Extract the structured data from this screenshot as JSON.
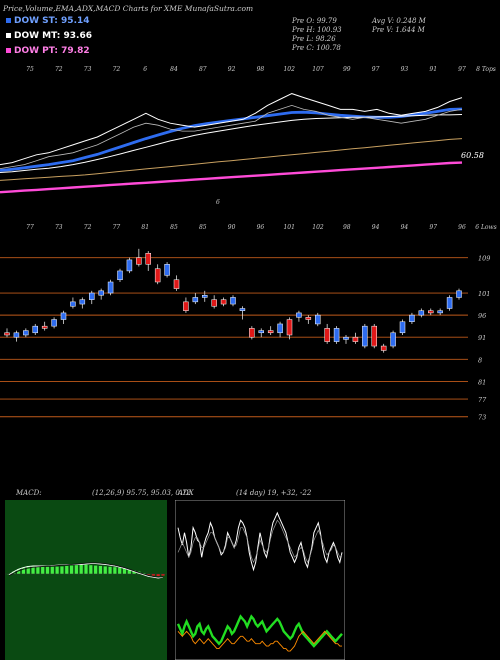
{
  "header": {
    "title": "Price,Volume,EMA,ADX,MACD Charts for XME MunafaSutra.com",
    "quote_lines": [
      [
        "Pre O: 99.79",
        "Avg V: 0.248 M"
      ],
      [
        "Pre H: 100.93",
        "Pre V: 1.644 M"
      ],
      [
        "Pre L: 98.26",
        ""
      ],
      [
        "Pre C: 100.78",
        ""
      ]
    ]
  },
  "legend": [
    {
      "text": "DOW ST: 95.14",
      "color": "#2e6cf0"
    },
    {
      "text": "DOW MT: 93.66",
      "color": "#ffffff"
    },
    {
      "text": "DOW PT: 79.82",
      "color": "#ff4bd8"
    }
  ],
  "colors": {
    "up": "#2e6cf0",
    "down": "#e01818",
    "grid": "#c05a1a",
    "macd_pos": "#44ee44",
    "adx_green": "#22dd22",
    "adx_orange": "#ff8c00"
  },
  "chart_data": [
    {
      "type": "line",
      "title": "EMA",
      "top_labels": [
        "75",
        "72",
        "73",
        "72",
        "6",
        "84",
        "87",
        "92",
        "98",
        "102",
        "107",
        "99",
        "97",
        "93",
        "91",
        "97",
        "8 Tops"
      ],
      "bottom_labels": [
        "77",
        "73",
        "72",
        "77",
        "81",
        "85",
        "85",
        "90",
        "96",
        "101",
        "102",
        "98",
        "94",
        "94",
        "97",
        "96",
        "6 Lows"
      ],
      "annotations": [
        "6",
        "6",
        "60.58"
      ],
      "series": [
        {
          "values": [
            79.5,
            79.8,
            80.2,
            80.6,
            81.0,
            81.5,
            82.0,
            82.8,
            83.6,
            84.6,
            85.6,
            86.6,
            87.6,
            88.5,
            89.4,
            90.2,
            90.9,
            91.4,
            91.8,
            92.2,
            92.6,
            93.0,
            93.4,
            93.8,
            94.2,
            94.3,
            94.1,
            93.8,
            93.5,
            93.3,
            93.1,
            93.0,
            93.0,
            93.2,
            93.6,
            94.0,
            94.5,
            95.0,
            95.1
          ]
        },
        {
          "values": [
            79.0,
            79.2,
            79.5,
            79.8,
            80.1,
            80.5,
            81.0,
            81.6,
            82.3,
            83.0,
            83.8,
            84.6,
            85.4,
            86.2,
            87.0,
            87.7,
            88.4,
            89.0,
            89.5,
            90.0,
            90.5,
            91.0,
            91.4,
            91.8,
            92.2,
            92.5,
            92.7,
            92.8,
            92.9,
            93.0,
            93.0,
            93.1,
            93.2,
            93.3,
            93.4,
            93.5,
            93.6,
            93.6,
            93.7
          ]
        },
        {
          "values": [
            77.0,
            77.2,
            77.4,
            77.6,
            77.8,
            78.0,
            78.2,
            78.4,
            78.7,
            79.0,
            79.3,
            79.6,
            79.9,
            80.2,
            80.5,
            80.8,
            81.1,
            81.4,
            81.7,
            82.0,
            82.3,
            82.6,
            82.9,
            83.2,
            83.5,
            83.8,
            84.1,
            84.4,
            84.7,
            85.0,
            85.3,
            85.6,
            85.9,
            86.2,
            86.5,
            86.8,
            87.1,
            87.4,
            87.6
          ]
        },
        {
          "values": [
            74.0,
            74.2,
            74.4,
            74.6,
            74.8,
            75.0,
            75.2,
            75.4,
            75.6,
            75.8,
            76.0,
            76.2,
            76.4,
            76.6,
            76.8,
            77.0,
            77.2,
            77.4,
            77.6,
            77.8,
            78.0,
            78.2,
            78.4,
            78.6,
            78.8,
            79.0,
            79.2,
            79.4,
            79.6,
            79.8,
            80.0,
            80.2,
            80.4,
            80.6,
            80.8,
            81.0,
            81.2,
            81.4,
            81.5
          ]
        },
        {
          "values": [
            81.0,
            81.5,
            82.5,
            83.5,
            84.0,
            85.0,
            86.0,
            87.0,
            88.0,
            89.5,
            91.0,
            92.5,
            94.0,
            92.5,
            91.5,
            91.0,
            90.5,
            91.0,
            91.5,
            92.0,
            92.5,
            94.0,
            96.0,
            97.5,
            99.0,
            98.0,
            97.0,
            96.0,
            95.0,
            95.0,
            94.5,
            95.0,
            94.0,
            93.5,
            94.0,
            94.5,
            95.5,
            97.0,
            98.0
          ]
        },
        {
          "values": [
            80.0,
            80.5,
            81.0,
            82.0,
            83.0,
            83.5,
            84.0,
            85.0,
            86.0,
            87.5,
            89.0,
            90.5,
            91.5,
            91.0,
            90.0,
            89.5,
            89.5,
            90.0,
            90.5,
            91.0,
            91.5,
            92.0,
            94.0,
            95.0,
            96.0,
            95.0,
            94.5,
            93.5,
            93.0,
            92.5,
            93.0,
            92.5,
            92.0,
            91.5,
            92.0,
            92.5,
            93.5,
            94.5,
            95.0
          ]
        }
      ],
      "ylim": [
        70,
        106
      ]
    },
    {
      "type": "candlestick",
      "title": "Price",
      "right_axis_labels": [
        "109",
        "101",
        "96",
        "91",
        "8",
        "81",
        "77",
        "73"
      ],
      "grid_levels": [
        109,
        101,
        96,
        91,
        86,
        81,
        77,
        73
      ],
      "ylim": [
        70,
        113
      ],
      "candles": [
        {
          "o": 92.0,
          "h": 93.0,
          "l": 91.0,
          "c": 91.5
        },
        {
          "o": 91.0,
          "h": 92.5,
          "l": 90.0,
          "c": 92.0
        },
        {
          "o": 91.5,
          "h": 93.0,
          "l": 91.0,
          "c": 92.5
        },
        {
          "o": 92.0,
          "h": 94.0,
          "l": 91.5,
          "c": 93.5
        },
        {
          "o": 93.5,
          "h": 94.5,
          "l": 92.5,
          "c": 93.0
        },
        {
          "o": 93.5,
          "h": 95.5,
          "l": 93.0,
          "c": 95.0
        },
        {
          "o": 95.0,
          "h": 97.0,
          "l": 94.0,
          "c": 96.5
        },
        {
          "o": 98.0,
          "h": 100.0,
          "l": 97.5,
          "c": 99.0
        },
        {
          "o": 98.5,
          "h": 100.0,
          "l": 97.5,
          "c": 99.5
        },
        {
          "o": 99.5,
          "h": 101.5,
          "l": 98.5,
          "c": 101.0
        },
        {
          "o": 100.5,
          "h": 102.0,
          "l": 99.5,
          "c": 101.5
        },
        {
          "o": 101.0,
          "h": 104.0,
          "l": 100.5,
          "c": 103.5
        },
        {
          "o": 104.0,
          "h": 106.5,
          "l": 103.5,
          "c": 106.0
        },
        {
          "o": 106.0,
          "h": 109.0,
          "l": 105.5,
          "c": 108.5
        },
        {
          "o": 109.0,
          "h": 111.0,
          "l": 107.0,
          "c": 107.5
        },
        {
          "o": 110.0,
          "h": 110.5,
          "l": 106.0,
          "c": 107.5
        },
        {
          "o": 106.5,
          "h": 107.5,
          "l": 103.0,
          "c": 103.5
        },
        {
          "o": 105.0,
          "h": 108.0,
          "l": 104.5,
          "c": 107.5
        },
        {
          "o": 104.0,
          "h": 105.0,
          "l": 101.5,
          "c": 102.0
        },
        {
          "o": 99.0,
          "h": 100.0,
          "l": 96.5,
          "c": 97.0
        },
        {
          "o": 99.0,
          "h": 101.0,
          "l": 98.5,
          "c": 100.0
        },
        {
          "o": 100.0,
          "h": 101.5,
          "l": 99.0,
          "c": 100.5
        },
        {
          "o": 99.5,
          "h": 100.5,
          "l": 97.5,
          "c": 98.0
        },
        {
          "o": 99.5,
          "h": 100.0,
          "l": 98.0,
          "c": 98.5
        },
        {
          "o": 98.5,
          "h": 100.5,
          "l": 98.0,
          "c": 100.0
        },
        {
          "o": 97.0,
          "h": 98.0,
          "l": 95.0,
          "c": 97.5
        },
        {
          "o": 93.0,
          "h": 93.5,
          "l": 90.5,
          "c": 91.0
        },
        {
          "o": 92.0,
          "h": 93.0,
          "l": 91.0,
          "c": 92.5
        },
        {
          "o": 92.5,
          "h": 93.5,
          "l": 91.5,
          "c": 92.0
        },
        {
          "o": 92.0,
          "h": 94.5,
          "l": 91.0,
          "c": 94.0
        },
        {
          "o": 95.0,
          "h": 95.5,
          "l": 90.5,
          "c": 91.5
        },
        {
          "o": 95.5,
          "h": 97.0,
          "l": 94.5,
          "c": 96.5
        },
        {
          "o": 95.5,
          "h": 96.0,
          "l": 94.0,
          "c": 95.0
        },
        {
          "o": 94.0,
          "h": 96.5,
          "l": 93.5,
          "c": 96.0
        },
        {
          "o": 93.0,
          "h": 94.0,
          "l": 89.5,
          "c": 90.0
        },
        {
          "o": 90.0,
          "h": 93.5,
          "l": 89.5,
          "c": 93.0
        },
        {
          "o": 90.5,
          "h": 91.5,
          "l": 89.5,
          "c": 91.0
        },
        {
          "o": 91.0,
          "h": 92.0,
          "l": 89.5,
          "c": 90.0
        },
        {
          "o": 89.0,
          "h": 94.0,
          "l": 88.5,
          "c": 93.5
        },
        {
          "o": 93.5,
          "h": 94.0,
          "l": 88.5,
          "c": 89.0
        },
        {
          "o": 89.0,
          "h": 89.5,
          "l": 87.5,
          "c": 88.0
        },
        {
          "o": 89.0,
          "h": 92.5,
          "l": 88.5,
          "c": 92.0
        },
        {
          "o": 92.0,
          "h": 95.0,
          "l": 91.5,
          "c": 94.5
        },
        {
          "o": 94.5,
          "h": 96.5,
          "l": 94.0,
          "c": 96.0
        },
        {
          "o": 96.0,
          "h": 97.5,
          "l": 95.5,
          "c": 97.0
        },
        {
          "o": 97.0,
          "h": 97.5,
          "l": 96.0,
          "c": 96.5
        },
        {
          "o": 96.5,
          "h": 97.5,
          "l": 96.0,
          "c": 97.0
        },
        {
          "o": 97.5,
          "h": 100.5,
          "l": 97.0,
          "c": 100.0
        },
        {
          "o": 100.0,
          "h": 102.0,
          "l": 99.5,
          "c": 101.5
        }
      ]
    },
    {
      "type": "bar",
      "title": "MACD",
      "label": "MACD:",
      "params": "(12,26,9) 95.75, 95.03, 0.72",
      "ylim": [
        -2.5,
        2.5
      ],
      "series": [
        {
          "name": "hist",
          "values": [
            0.0,
            0.3,
            0.6,
            0.8,
            1.0,
            1.0,
            0.95,
            0.92,
            0.9,
            0.9,
            0.92,
            0.95,
            1.0,
            1.05,
            1.1,
            1.15,
            1.15,
            1.1,
            1.05,
            1.0,
            0.95,
            0.9,
            0.85,
            0.8,
            0.7,
            0.6,
            0.45,
            0.3,
            0.1,
            -0.1,
            -0.2,
            -0.25,
            -0.2
          ]
        },
        {
          "name": "macd",
          "values": [
            -0.1,
            0.3,
            0.6,
            0.8,
            0.95,
            1.0,
            1.0,
            1.0,
            1.0,
            1.05,
            1.1,
            1.15,
            1.2,
            1.2,
            1.2,
            1.2,
            1.25,
            1.3,
            1.3,
            1.25,
            1.2,
            1.1,
            1.0,
            0.85,
            0.7,
            0.5,
            0.3,
            0.1,
            -0.1,
            -0.3,
            -0.4,
            -0.5,
            -0.4
          ]
        },
        {
          "name": "signal",
          "values": [
            -0.2,
            0.1,
            0.4,
            0.6,
            0.75,
            0.85,
            0.9,
            0.95,
            0.98,
            1.0,
            1.05,
            1.1,
            1.15,
            1.2,
            1.25,
            1.3,
            1.35,
            1.4,
            1.4,
            1.35,
            1.3,
            1.2,
            1.1,
            0.95,
            0.8,
            0.6,
            0.4,
            0.2,
            0.0,
            -0.2,
            -0.3,
            -0.4,
            -0.35
          ]
        }
      ]
    },
    {
      "type": "line",
      "title": "ADX",
      "label": "ADX",
      "params": "(14 day) 19, +32, -22",
      "ylim": [
        0,
        60
      ],
      "series": [
        {
          "name": "white",
          "values": [
            52,
            48,
            45,
            50,
            46,
            40,
            44,
            52,
            50,
            47,
            46,
            40,
            45,
            48,
            50,
            54,
            52,
            48,
            46,
            44,
            41,
            42,
            45,
            50,
            48,
            46,
            44,
            47,
            52,
            55,
            54,
            52,
            48,
            42,
            38,
            35,
            38,
            44,
            50,
            46,
            42,
            40,
            44,
            50,
            54,
            56,
            58,
            56,
            54,
            52,
            50,
            46,
            42,
            40,
            38,
            40,
            44,
            46,
            42,
            38,
            36,
            40,
            44,
            50,
            52,
            54,
            50,
            44,
            40,
            38,
            42,
            44,
            46,
            44,
            40,
            38,
            42
          ]
        },
        {
          "name": "grey",
          "values": [
            42,
            44,
            46,
            44,
            42,
            40,
            42,
            46,
            48,
            48,
            46,
            44,
            44,
            46,
            48,
            50,
            50,
            48,
            46,
            44,
            42,
            42,
            44,
            48,
            48,
            46,
            44,
            45,
            48,
            52,
            52,
            50,
            48,
            44,
            40,
            38,
            40,
            43,
            47,
            45,
            43,
            42,
            44,
            48,
            51,
            53,
            55,
            54,
            52,
            50,
            48,
            46,
            44,
            42,
            40,
            41,
            43,
            44,
            43,
            40,
            38,
            40,
            43,
            47,
            49,
            51,
            49,
            46,
            43,
            41,
            42,
            43,
            45,
            44,
            42,
            40,
            41
          ]
        },
        {
          "name": "green",
          "values": [
            13,
            11,
            9,
            12,
            14,
            12,
            10,
            8,
            9,
            12,
            13,
            10,
            9,
            11,
            12,
            10,
            8,
            7,
            6,
            5,
            6,
            8,
            10,
            12,
            11,
            9,
            10,
            12,
            14,
            16,
            15,
            14,
            12,
            14,
            16,
            15,
            13,
            12,
            13,
            14,
            12,
            10,
            11,
            12,
            13,
            14,
            15,
            14,
            12,
            10,
            9,
            8,
            7,
            8,
            10,
            12,
            13,
            11,
            9,
            8,
            7,
            6,
            5,
            4,
            5,
            6,
            7,
            8,
            9,
            10,
            9,
            8,
            7,
            6,
            7,
            8,
            9
          ]
        },
        {
          "name": "orange",
          "values": [
            10,
            9,
            8,
            9,
            10,
            9,
            8,
            6,
            5,
            6,
            7,
            6,
            5,
            6,
            7,
            6,
            5,
            4,
            3,
            3,
            4,
            5,
            6,
            7,
            6,
            5,
            5,
            6,
            7,
            8,
            8,
            7,
            6,
            6,
            7,
            6,
            5,
            5,
            5,
            6,
            5,
            4,
            4,
            5,
            5,
            6,
            6,
            5,
            4,
            3,
            3,
            2,
            2,
            3,
            4,
            6,
            8,
            9,
            10,
            9,
            8,
            7,
            6,
            5,
            6,
            7,
            8,
            9,
            10,
            9,
            8,
            7,
            6,
            5,
            5,
            4,
            4
          ]
        }
      ]
    }
  ]
}
